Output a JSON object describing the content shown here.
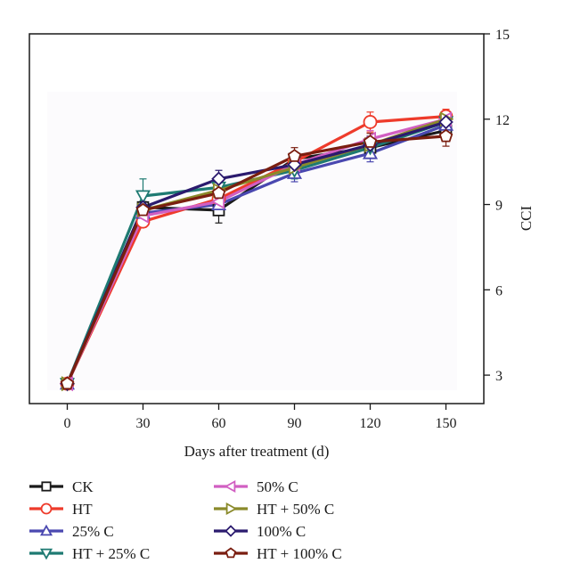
{
  "chart_data": {
    "type": "line",
    "xlabel": "Days after treatment (d)",
    "ylabel": "CCI",
    "x": [
      0,
      30,
      60,
      90,
      120,
      150
    ],
    "x_ticks": [
      "0",
      "30",
      "60",
      "90",
      "120",
      "150"
    ],
    "y_ticks": [
      "3",
      "6",
      "9",
      "12",
      "15"
    ],
    "xlim": [
      -15,
      165
    ],
    "ylim": [
      2.0,
      15.0
    ],
    "y_axis_position": "right",
    "grid": false,
    "legend_position": "bottom",
    "series": [
      {
        "name": "CK",
        "color": "#1a1a1a",
        "marker": "square",
        "values": [
          2.7,
          8.9,
          8.8,
          10.6,
          11.0,
          11.6
        ],
        "errors": [
          0.1,
          0.2,
          0.45,
          0.25,
          0.25,
          0.3
        ]
      },
      {
        "name": "HT",
        "color": "#ee3b2b",
        "marker": "circle",
        "values": [
          2.7,
          8.4,
          9.2,
          10.5,
          11.9,
          12.1
        ],
        "errors": [
          0.1,
          0.2,
          0.3,
          0.3,
          0.35,
          0.25
        ]
      },
      {
        "name": "25% C",
        "color": "#4a48b0",
        "marker": "triangle-up",
        "values": [
          2.7,
          8.7,
          9.0,
          10.1,
          10.8,
          11.8
        ],
        "errors": [
          0.1,
          0.2,
          0.3,
          0.3,
          0.3,
          0.3
        ]
      },
      {
        "name": "HT + 25% C",
        "color": "#1e7a72",
        "marker": "triangle-down",
        "values": [
          2.7,
          9.3,
          9.6,
          10.2,
          11.0,
          11.9
        ],
        "errors": [
          0.1,
          0.6,
          0.3,
          0.3,
          0.3,
          0.3
        ]
      },
      {
        "name": "50% C",
        "color": "#d15fc2",
        "marker": "triangle-left",
        "values": [
          2.7,
          8.6,
          9.1,
          10.4,
          11.3,
          12.0
        ],
        "errors": [
          0.1,
          0.2,
          0.3,
          0.3,
          0.3,
          0.3
        ]
      },
      {
        "name": "HT + 50% C",
        "color": "#8a8a2a",
        "marker": "triangle-right",
        "values": [
          2.7,
          8.8,
          9.5,
          10.3,
          11.1,
          12.0
        ],
        "errors": [
          0.1,
          0.2,
          0.3,
          0.3,
          0.3,
          0.3
        ]
      },
      {
        "name": "100% C",
        "color": "#2b1a6e",
        "marker": "diamond",
        "values": [
          2.7,
          8.9,
          9.9,
          10.4,
          11.1,
          11.9
        ],
        "errors": [
          0.1,
          0.2,
          0.3,
          0.3,
          0.3,
          0.3
        ]
      },
      {
        "name": "HT + 100% C",
        "color": "#7a1e10",
        "marker": "pentagon",
        "values": [
          2.7,
          8.8,
          9.4,
          10.7,
          11.2,
          11.4
        ],
        "errors": [
          0.1,
          0.2,
          0.3,
          0.3,
          0.3,
          0.35
        ]
      }
    ]
  }
}
